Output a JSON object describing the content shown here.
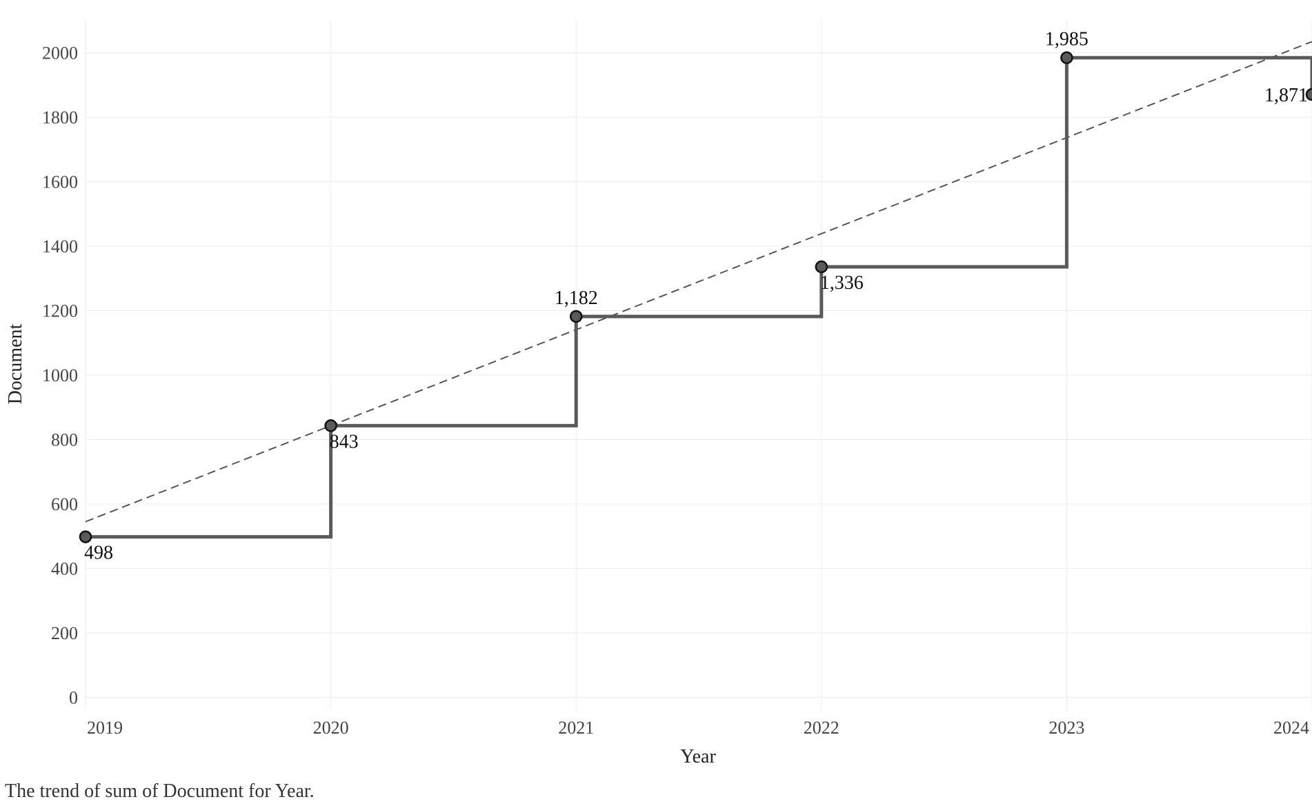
{
  "caption": "The trend of sum of Document for Year.",
  "chart_data": {
    "type": "line",
    "style": "step-after",
    "categories": [
      "2019",
      "2020",
      "2021",
      "2022",
      "2023",
      "2024"
    ],
    "x": [
      2019,
      2020,
      2021,
      2022,
      2023,
      2024
    ],
    "y_ticks": [
      0,
      200,
      400,
      600,
      800,
      1000,
      1200,
      1400,
      1600,
      1800,
      2000
    ],
    "series": [
      {
        "values": [
          498,
          843,
          1182,
          1336,
          1985,
          1871
        ],
        "labels": [
          "498",
          "843",
          "1,182",
          "1,336",
          "1,985",
          "1,871"
        ],
        "color": "#5a5a5a"
      }
    ],
    "trendline": {
      "kind": "linear",
      "dashed": true,
      "color": "#555555",
      "start": [
        2019,
        545
      ],
      "end": [
        2024,
        2035
      ]
    },
    "xlabel": "Year",
    "ylabel": "Document",
    "xlim": [
      2019,
      2024
    ],
    "ylim": [
      -40,
      2100
    ],
    "grid": true,
    "label_positions": [
      "below",
      "below",
      "above",
      "below",
      "above",
      "left"
    ]
  }
}
